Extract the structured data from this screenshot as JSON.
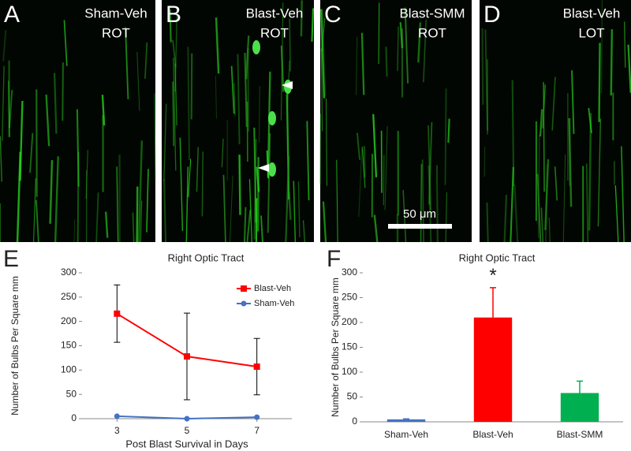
{
  "panels": [
    {
      "letter": "A",
      "label": [
        "Sham-Veh",
        "ROT"
      ]
    },
    {
      "letter": "B",
      "label": [
        "Blast-Veh",
        "ROT"
      ]
    },
    {
      "letter": "C",
      "label": [
        "Blast-SMM",
        "ROT"
      ],
      "scale_bar": "50 μm"
    },
    {
      "letter": "D",
      "label": [
        "Blast-Veh",
        "LOT"
      ]
    }
  ],
  "chart_data": [
    {
      "type": "line",
      "panel": "E",
      "title": "Right Optic Tract",
      "xlabel": "Post Blast Survival in Days",
      "ylabel": "Number of Bulbs Per Square mm",
      "x": [
        3,
        5,
        7
      ],
      "xlim": [
        2,
        8
      ],
      "xticks": [
        3,
        5,
        7
      ],
      "ylim": [
        0,
        300
      ],
      "yticks": [
        0,
        50,
        100,
        150,
        200,
        250,
        300
      ],
      "legend": "upper right",
      "series": [
        {
          "name": "Blast-Veh",
          "color": "#ff0000",
          "marker": "square",
          "values": [
            216,
            128,
            107
          ],
          "errors": [
            59,
            89,
            58
          ]
        },
        {
          "name": "Sham-Veh",
          "color": "#4472c4",
          "marker": "circle",
          "values": [
            5,
            0,
            3
          ]
        }
      ]
    },
    {
      "type": "bar",
      "panel": "F",
      "title": "Right Optic Tract",
      "ylabel": "Number of Bulbs Per Square mm",
      "categories": [
        "Sham-Veh",
        "Blast-Veh",
        "Blast-SMM"
      ],
      "values": [
        5,
        210,
        58
      ],
      "errors": [
        1,
        60,
        24
      ],
      "colors": [
        "#4472c4",
        "#ff0000",
        "#00b050"
      ],
      "annotations": [
        {
          "category": 1,
          "text": "*"
        }
      ],
      "ylim": [
        0,
        300
      ],
      "yticks": [
        0,
        50,
        100,
        150,
        200,
        250,
        300
      ]
    }
  ]
}
